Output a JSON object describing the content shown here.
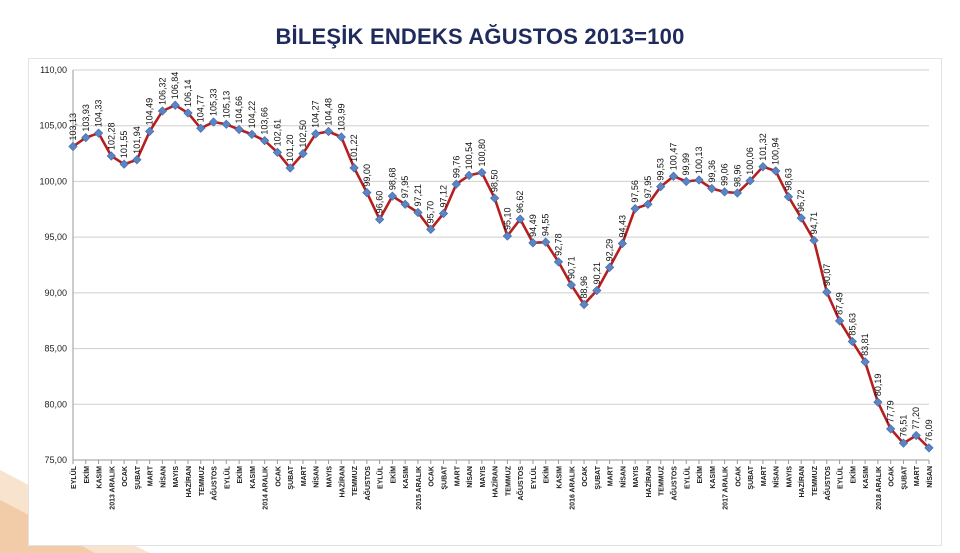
{
  "colors": {
    "line": "#b51f1f",
    "marker": "#5b84c4",
    "title": "#1f2b5c",
    "grid": "#cfcfcf",
    "swoosh": "#f2c9a3"
  },
  "chart_data": {
    "type": "line",
    "title": "BİLEŞİK ENDEKS AĞUSTOS 2013=100",
    "xlabel": "",
    "ylabel": "",
    "ylim": [
      75,
      110
    ],
    "yticks": [
      "75,00",
      "80,00",
      "85,00",
      "90,00",
      "95,00",
      "100,00",
      "105,00",
      "110,00"
    ],
    "grid": true,
    "categories": [
      "EYLÜL",
      "EKİM",
      "KASIM",
      "2013 ARALIK",
      "OCAK",
      "ŞUBAT",
      "MART",
      "NİSAN",
      "MAYIS",
      "HAZİRAN",
      "TEMMUZ",
      "AĞUSTOS",
      "EYLÜL",
      "EKİM",
      "KASIM",
      "2014 ARALIK",
      "OCAK",
      "ŞUBAT",
      "MART",
      "NİSAN",
      "MAYIS",
      "HAZİRAN",
      "TEMMUZ",
      "AĞUSTOS",
      "EYLÜL",
      "EKİM",
      "KASIM",
      "2015 ARALIK",
      "OCAK",
      "ŞUBAT",
      "MART",
      "NİSAN",
      "MAYIS",
      "HAZİRAN",
      "TEMMUZ",
      "AĞUSTOS",
      "EYLÜL",
      "EKİM",
      "KASIM",
      "2016 ARALIK",
      "OCAK",
      "ŞUBAT",
      "MART",
      "NİSAN",
      "MAYIS",
      "HAZİRAN",
      "TEMMUZ",
      "AĞUSTOS",
      "EYLÜL",
      "EKİM",
      "KASIM",
      "2017 ARALIK",
      "OCAK",
      "ŞUBAT",
      "MART",
      "NİSAN",
      "MAYIS",
      "HAZİRAN",
      "TEMMUZ",
      "AĞUSTOS",
      "EYLÜL",
      "EKİM",
      "KASIM",
      "2018 ARALIK",
      "OCAK",
      "ŞUBAT",
      "MART",
      "NİSAN"
    ],
    "values": [
      103.13,
      103.93,
      104.33,
      102.28,
      101.55,
      101.94,
      104.49,
      106.32,
      106.84,
      106.14,
      104.77,
      105.33,
      105.13,
      104.66,
      104.22,
      103.66,
      102.61,
      101.2,
      102.5,
      104.27,
      104.48,
      103.99,
      101.22,
      99.0,
      96.6,
      98.68,
      97.95,
      97.21,
      95.7,
      97.12,
      99.76,
      100.54,
      100.8,
      98.5,
      95.1,
      96.62,
      94.49,
      94.55,
      92.78,
      90.71,
      88.96,
      90.21,
      92.29,
      94.43,
      97.56,
      97.95,
      99.53,
      100.47,
      99.99,
      100.13,
      99.36,
      99.06,
      98.96,
      100.06,
      101.32,
      100.94,
      98.63,
      96.72,
      94.71,
      90.07,
      87.49,
      85.63,
      83.81,
      80.19,
      77.79,
      76.51,
      77.2,
      76.09
    ],
    "labels": [
      "103,13",
      "103,93",
      "104,33",
      "102,28",
      "101,55",
      "101,94",
      "104,49",
      "106,32",
      "106,84",
      "106,14",
      "104,77",
      "105,33",
      "105,13",
      "104,66",
      "104,22",
      "103,66",
      "102,61",
      "101,20",
      "102,50",
      "104,27",
      "104,48",
      "103,99",
      "101,22",
      "99,00",
      "96,60",
      "98,68",
      "97,95",
      "97,21",
      "95,70",
      "97,12",
      "99,76",
      "100,54",
      "100,80",
      "98,50",
      "95,10",
      "96,62",
      "94,49",
      "94,55",
      "92,78",
      "90,71",
      "88,96",
      "90,21",
      "92,29",
      "94,43",
      "97,56",
      "97,95",
      "99,53",
      "100,47",
      "99,99",
      "100,13",
      "99,36",
      "99,06",
      "98,96",
      "100,06",
      "101,32",
      "100,94",
      "98,63",
      "96,72",
      "94,71",
      "90,07",
      "87,49",
      "85,63",
      "83,81",
      "80,19",
      "77,79",
      "76,51",
      "77,20",
      "76,09"
    ]
  }
}
